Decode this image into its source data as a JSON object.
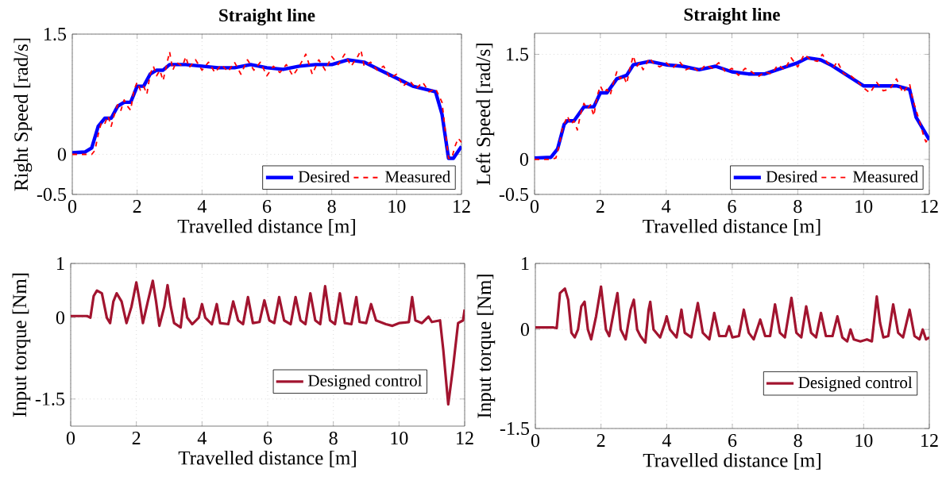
{
  "chart_data": [
    {
      "type": "line",
      "title": "Straight line",
      "xlabel": "Travelled distance [m]",
      "ylabel": "Right Speed [rad/s]",
      "xlim": [
        0,
        12
      ],
      "xticks": [
        0,
        2,
        4,
        6,
        8,
        10,
        12
      ],
      "ylim": [
        -0.5,
        1.5
      ],
      "yticks": [
        -0.5,
        0,
        1.5
      ],
      "grid": true,
      "legend": "bottom right",
      "series": [
        {
          "name": "Desired",
          "color": "#0000ff",
          "line_style": "solid",
          "x": [
            0,
            0.4,
            0.6,
            0.8,
            1.0,
            1.2,
            1.4,
            1.6,
            1.8,
            2.0,
            2.2,
            2.4,
            2.6,
            2.8,
            3.0,
            3.5,
            4,
            4.5,
            5,
            5.5,
            6,
            6.5,
            7,
            7.5,
            8,
            8.5,
            9,
            9.5,
            10,
            10.5,
            11,
            11.2,
            11.4,
            11.6,
            11.75,
            12
          ],
          "values": [
            0.02,
            0.03,
            0.08,
            0.35,
            0.45,
            0.45,
            0.6,
            0.65,
            0.65,
            0.85,
            0.85,
            1.0,
            1.05,
            1.05,
            1.12,
            1.12,
            1.1,
            1.08,
            1.08,
            1.12,
            1.08,
            1.06,
            1.1,
            1.12,
            1.12,
            1.18,
            1.15,
            1.05,
            0.95,
            0.85,
            0.8,
            0.78,
            0.5,
            -0.05,
            -0.05,
            0.1
          ]
        },
        {
          "name": "Measured",
          "color": "#ff0000",
          "line_style": "dashed",
          "x": [
            0,
            0.2,
            0.4,
            0.6,
            0.7,
            0.8,
            0.9,
            1.0,
            1.1,
            1.2,
            1.3,
            1.4,
            1.5,
            1.6,
            1.7,
            1.8,
            1.9,
            2.0,
            2.1,
            2.2,
            2.3,
            2.4,
            2.5,
            2.6,
            2.7,
            2.8,
            2.9,
            3.0,
            3.1,
            3.2,
            3.4,
            3.5,
            3.6,
            3.8,
            4.0,
            4.2,
            4.4,
            4.6,
            4.8,
            5.0,
            5.2,
            5.4,
            5.6,
            5.8,
            6.0,
            6.2,
            6.4,
            6.6,
            6.8,
            7.0,
            7.2,
            7.4,
            7.6,
            7.8,
            8.0,
            8.2,
            8.4,
            8.6,
            8.8,
            8.9,
            9.0,
            9.2,
            9.4,
            9.6,
            9.8,
            10.0,
            10.2,
            10.4,
            10.6,
            10.8,
            11.0,
            11.2,
            11.4,
            11.5,
            11.6,
            11.7,
            11.8,
            11.9,
            12
          ],
          "values": [
            0,
            0,
            0,
            0,
            0.05,
            0.25,
            0.4,
            0.38,
            0.48,
            0.35,
            0.5,
            0.62,
            0.55,
            0.68,
            0.6,
            0.55,
            0.8,
            0.9,
            0.8,
            0.85,
            0.75,
            1.0,
            1.1,
            0.98,
            1.05,
            0.92,
            1.1,
            1.28,
            1.05,
            1.15,
            1.1,
            1.22,
            1.08,
            1.18,
            1.05,
            1.15,
            1.02,
            1.12,
            1.03,
            1.15,
            1.0,
            1.18,
            1.05,
            1.15,
            0.98,
            1.1,
            1.02,
            1.12,
            0.98,
            1.1,
            1.25,
            1.0,
            1.18,
            1.05,
            1.22,
            1.12,
            1.25,
            1.1,
            1.22,
            1.3,
            1.1,
            1.15,
            1.05,
            1.1,
            0.95,
            1.0,
            0.85,
            0.92,
            0.82,
            0.9,
            0.78,
            0.82,
            0.65,
            0.3,
            -0.05,
            -0.05,
            0.1,
            0.2,
            0.15
          ]
        }
      ]
    },
    {
      "type": "line",
      "title": "Straight line",
      "xlabel": "Travelled distance [m]",
      "ylabel": "Left Speed [rad/s]",
      "xlim": [
        0,
        12
      ],
      "xticks": [
        0,
        2,
        4,
        6,
        8,
        10,
        12
      ],
      "ylim": [
        -0.5,
        1.8
      ],
      "yticks": [
        -0.5,
        0,
        1.5
      ],
      "grid": true,
      "legend": "bottom right",
      "series": [
        {
          "name": "Desired",
          "color": "#0000ff",
          "line_style": "solid",
          "x": [
            0,
            0.5,
            0.7,
            0.9,
            1.0,
            1.2,
            1.5,
            1.8,
            2.0,
            2.2,
            2.5,
            2.8,
            3.0,
            3.5,
            4,
            4.5,
            5,
            5.5,
            6,
            6.5,
            7,
            7.5,
            8,
            8.3,
            8.7,
            9,
            9.5,
            10,
            10.5,
            11,
            11.4,
            11.6,
            12
          ],
          "values": [
            0.02,
            0.03,
            0.15,
            0.5,
            0.55,
            0.55,
            0.75,
            0.75,
            0.95,
            0.95,
            1.15,
            1.2,
            1.35,
            1.4,
            1.35,
            1.33,
            1.28,
            1.33,
            1.25,
            1.22,
            1.22,
            1.3,
            1.38,
            1.45,
            1.42,
            1.35,
            1.2,
            1.05,
            1.05,
            1.05,
            1.0,
            0.6,
            0.28
          ]
        },
        {
          "name": "Measured",
          "color": "#ff0000",
          "line_style": "dashed",
          "x": [
            0,
            0.5,
            0.65,
            0.75,
            0.85,
            1.0,
            1.1,
            1.2,
            1.3,
            1.4,
            1.5,
            1.6,
            1.7,
            1.8,
            1.9,
            2.0,
            2.1,
            2.2,
            2.3,
            2.4,
            2.5,
            2.6,
            2.7,
            2.8,
            2.9,
            3.0,
            3.1,
            3.2,
            3.3,
            3.5,
            3.6,
            3.8,
            4.0,
            4.2,
            4.4,
            4.6,
            4.8,
            5.0,
            5.2,
            5.4,
            5.6,
            5.8,
            6.0,
            6.2,
            6.4,
            6.6,
            6.8,
            7.0,
            7.2,
            7.4,
            7.6,
            7.8,
            8.0,
            8.2,
            8.4,
            8.6,
            8.75,
            8.9,
            9.1,
            9.2,
            9.4,
            9.6,
            9.8,
            10.0,
            10.2,
            10.4,
            10.6,
            10.8,
            11.0,
            11.2,
            11.4,
            11.5,
            11.7,
            11.85,
            11.9,
            12
          ],
          "values": [
            0,
            0,
            0.02,
            0.2,
            0.45,
            0.62,
            0.5,
            0.55,
            0.42,
            0.65,
            0.8,
            0.72,
            0.78,
            0.62,
            0.9,
            1.05,
            0.95,
            1.0,
            0.92,
            1.1,
            1.25,
            1.15,
            1.2,
            1.08,
            1.3,
            1.48,
            1.32,
            1.38,
            1.28,
            1.45,
            1.38,
            1.32,
            1.38,
            1.3,
            1.4,
            1.28,
            1.32,
            1.25,
            1.35,
            1.3,
            1.38,
            1.25,
            1.3,
            1.2,
            1.3,
            1.25,
            1.18,
            1.25,
            1.22,
            1.35,
            1.28,
            1.45,
            1.32,
            1.5,
            1.42,
            1.4,
            1.5,
            1.38,
            1.32,
            1.4,
            1.22,
            1.2,
            1.12,
            1.02,
            0.95,
            1.1,
            0.98,
            1.0,
            1.15,
            0.95,
            1.08,
            0.85,
            0.55,
            0.3,
            0.25,
            0.32
          ]
        }
      ]
    },
    {
      "type": "line",
      "xlabel": "Travelled distance [m]",
      "ylabel": "Input torque [Nm]",
      "xlim": [
        0,
        12
      ],
      "xticks": [
        0,
        2,
        4,
        6,
        8,
        10,
        12
      ],
      "ylim": [
        -2,
        1
      ],
      "yticks": [
        -1.5,
        0,
        1
      ],
      "grid": true,
      "legend": "bottom right",
      "series": [
        {
          "name": "Designed control",
          "color": "#a2142f",
          "line_style": "solid",
          "x": [
            0,
            0.5,
            0.6,
            0.7,
            0.8,
            0.95,
            1.1,
            1.2,
            1.3,
            1.4,
            1.55,
            1.7,
            1.85,
            2.0,
            2.1,
            2.2,
            2.35,
            2.5,
            2.6,
            2.7,
            2.85,
            2.95,
            3.05,
            3.15,
            3.35,
            3.45,
            3.55,
            3.7,
            3.9,
            4.0,
            4.1,
            4.3,
            4.45,
            4.55,
            4.8,
            4.95,
            5.1,
            5.25,
            5.4,
            5.55,
            5.75,
            5.9,
            6.05,
            6.2,
            6.35,
            6.5,
            6.7,
            6.85,
            7.0,
            7.15,
            7.3,
            7.45,
            7.6,
            7.75,
            7.9,
            8.05,
            8.2,
            8.35,
            8.55,
            8.7,
            8.8,
            9.0,
            9.15,
            9.3,
            9.6,
            9.8,
            10.0,
            10.3,
            10.4,
            10.5,
            10.7,
            10.9,
            11.0,
            11.25,
            11.35,
            11.5,
            11.65,
            11.8,
            11.95,
            12
          ],
          "values": [
            0.03,
            0.03,
            0.0,
            0.4,
            0.5,
            0.45,
            0.0,
            -0.1,
            0.3,
            0.45,
            0.3,
            -0.1,
            0.2,
            0.65,
            0.3,
            -0.1,
            0.3,
            0.68,
            0.3,
            -0.15,
            0.2,
            0.6,
            0.2,
            -0.1,
            -0.18,
            0.35,
            0.0,
            -0.12,
            0.0,
            0.25,
            0.0,
            -0.12,
            0.25,
            -0.1,
            -0.12,
            0.3,
            -0.05,
            -0.12,
            0.38,
            -0.1,
            -0.08,
            0.32,
            -0.05,
            -0.1,
            0.38,
            -0.05,
            -0.12,
            0.38,
            -0.05,
            -0.12,
            0.45,
            -0.05,
            -0.12,
            0.58,
            -0.05,
            -0.12,
            0.45,
            -0.1,
            -0.12,
            0.38,
            -0.08,
            -0.1,
            0.25,
            -0.05,
            -0.12,
            -0.15,
            -0.1,
            -0.08,
            0.38,
            -0.05,
            -0.1,
            0.02,
            -0.08,
            -0.05,
            -0.6,
            -1.6,
            -0.9,
            -0.1,
            -0.05,
            0.15
          ]
        }
      ]
    },
    {
      "type": "line",
      "xlabel": "Travelled distance [m]",
      "ylabel": "Input torque [Nm]",
      "xlim": [
        0,
        12
      ],
      "xticks": [
        0,
        2,
        4,
        6,
        8,
        10,
        12
      ],
      "ylim": [
        -1.5,
        1
      ],
      "yticks": [
        -1.5,
        0,
        1
      ],
      "grid": true,
      "legend": "bottom right",
      "series": [
        {
          "name": "Designed control",
          "color": "#a2142f",
          "line_style": "solid",
          "x": [
            0,
            0.55,
            0.65,
            0.75,
            0.9,
            1.0,
            1.1,
            1.2,
            1.3,
            1.4,
            1.5,
            1.6,
            1.7,
            1.85,
            2.0,
            2.15,
            2.25,
            2.4,
            2.5,
            2.6,
            2.75,
            2.9,
            3.0,
            3.1,
            3.2,
            3.35,
            3.45,
            3.5,
            3.6,
            3.8,
            3.95,
            4.0,
            4.1,
            4.3,
            4.45,
            4.55,
            4.75,
            4.95,
            5.1,
            5.3,
            5.45,
            5.6,
            5.8,
            5.9,
            6.0,
            6.2,
            6.35,
            6.5,
            6.65,
            6.85,
            7.0,
            7.15,
            7.3,
            7.45,
            7.6,
            7.8,
            7.95,
            8.1,
            8.25,
            8.4,
            8.55,
            8.7,
            8.85,
            9.05,
            9.2,
            9.35,
            9.5,
            9.6,
            9.7,
            9.9,
            10.1,
            10.25,
            10.4,
            10.5,
            10.6,
            10.75,
            10.9,
            11.05,
            11.2,
            11.4,
            11.55,
            11.7,
            11.8,
            11.9,
            12
          ],
          "values": [
            0.03,
            0.03,
            0.02,
            0.55,
            0.62,
            0.45,
            -0.05,
            -0.12,
            0.0,
            0.35,
            0.42,
            0.0,
            -0.15,
            0.2,
            0.65,
            0.0,
            -0.1,
            0.3,
            0.55,
            0.0,
            -0.15,
            0.3,
            0.45,
            0.0,
            -0.1,
            -0.2,
            0.3,
            0.42,
            0.0,
            -0.12,
            0.1,
            0.2,
            0.0,
            -0.12,
            0.3,
            -0.05,
            -0.12,
            0.4,
            -0.05,
            -0.15,
            0.25,
            -0.1,
            -0.1,
            0.05,
            -0.12,
            -0.1,
            0.3,
            -0.05,
            -0.15,
            0.15,
            -0.1,
            -0.1,
            0.38,
            -0.05,
            -0.12,
            0.48,
            -0.05,
            -0.12,
            0.35,
            -0.05,
            -0.12,
            0.25,
            -0.1,
            -0.1,
            0.2,
            -0.12,
            -0.18,
            0.0,
            -0.15,
            -0.18,
            -0.15,
            -0.18,
            0.5,
            0.1,
            -0.12,
            -0.1,
            0.38,
            -0.05,
            -0.12,
            0.3,
            -0.1,
            -0.15,
            0.0,
            -0.15,
            -0.12
          ]
        }
      ]
    }
  ]
}
